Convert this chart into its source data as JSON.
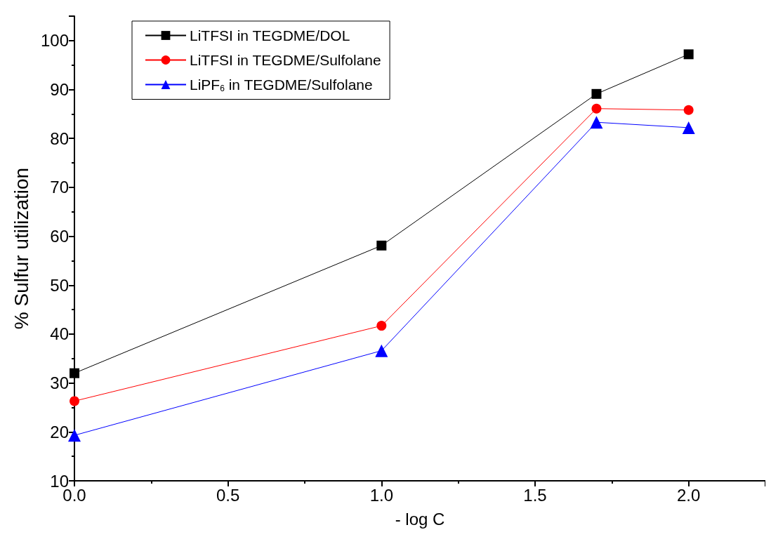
{
  "chart_data": {
    "type": "line",
    "xlabel": "- log C",
    "ylabel": "% Sulfur utilization",
    "x": [
      0,
      1,
      1.7,
      2
    ],
    "series": [
      {
        "name": "LiTFSI in TEGDME/DOL",
        "color": "#000000",
        "marker": "square",
        "values": [
          32,
          58.1,
          89.1,
          97.2
        ]
      },
      {
        "name": "LiTFSI in TEGDME/Sulfolane",
        "color": "#ff0000",
        "marker": "circle",
        "values": [
          26.3,
          41.7,
          86.1,
          85.8
        ]
      },
      {
        "name": "LiPF$_{6}$ in TEGDME/Sulfolane",
        "color": "#0000ff",
        "marker": "triangle",
        "values": [
          19.3,
          36.6,
          83.3,
          82.2
        ]
      }
    ],
    "xlim": [
      0,
      2.25
    ],
    "xticks": [
      {
        "value": 0,
        "label": "0.0"
      },
      {
        "value": 0.5,
        "label": "0.5"
      },
      {
        "value": 1,
        "label": "1.0"
      },
      {
        "value": 1.5,
        "label": "1.5"
      },
      {
        "value": 2,
        "label": "2.0"
      }
    ],
    "ylim": [
      10,
      105
    ],
    "yticks": [
      10,
      20,
      30,
      40,
      50,
      60,
      70,
      80,
      90,
      100
    ],
    "legend": "top left",
    "line_style": "solid"
  }
}
